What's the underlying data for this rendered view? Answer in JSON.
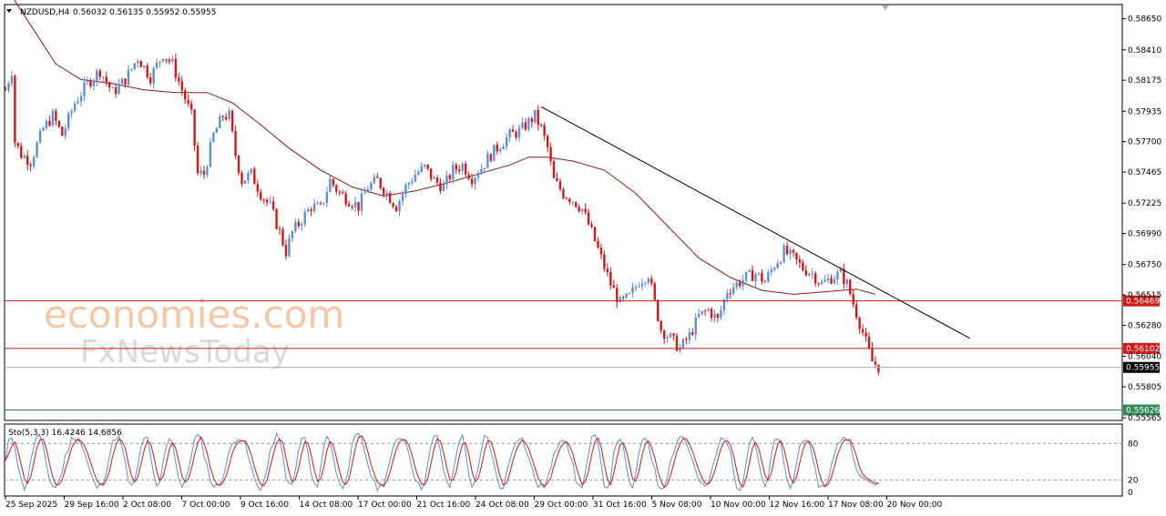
{
  "header": {
    "symbol": "NZDUSD,H4",
    "ohlc": "0.56032 0.56135 0.55952 0.55955"
  },
  "indicator_header": "Sto(5,3,3) 16.4246 14.6856",
  "watermark": {
    "line1": "economies.com",
    "line2": "FxNewsToday"
  },
  "colors": {
    "bull": "#5b8fd6",
    "bear": "#d41717",
    "ma": "#8b1a1a",
    "hline": "#d41717",
    "trend": "#000000",
    "sto_main": "#5b8fd6",
    "sto_signal": "#d41717",
    "green": "#2e8b57",
    "watermark_orange": "#f5c7a6",
    "watermark_grey": "#d9d9d9"
  },
  "chart_data": [
    {
      "type": "candlestick",
      "y_tick_labels": [
        "0.58650",
        "0.58410",
        "0.58175",
        "0.57935",
        "0.57700",
        "0.57465",
        "0.57225",
        "0.56990",
        "0.56750",
        "0.56515",
        "0.56280",
        "0.56040",
        "0.55805",
        "0.55565"
      ],
      "ylim": [
        0.55545,
        0.5876
      ],
      "x_tick_labels": [
        "25 Sep 2025",
        "29 Sep 16:00",
        "2 Oct 08:00",
        "7 Oct 00:00",
        "9 Oct 16:00",
        "14 Oct 08:00",
        "17 Oct 00:00",
        "21 Oct 16:00",
        "24 Oct 08:00",
        "29 Oct 00:00",
        "31 Oct 16:00",
        "5 Nov 08:00",
        "10 Nov 00:00",
        "12 Nov 16:00",
        "17 Nov 08:00",
        "20 Nov 00:00"
      ],
      "anchors": [
        [
          0,
          0.581
        ],
        [
          2,
          0.5825
        ],
        [
          3,
          0.577
        ],
        [
          5,
          0.576
        ],
        [
          8,
          0.5755
        ],
        [
          12,
          0.578
        ],
        [
          15,
          0.579
        ],
        [
          18,
          0.5775
        ],
        [
          22,
          0.58
        ],
        [
          26,
          0.5815
        ],
        [
          30,
          0.5825
        ],
        [
          34,
          0.5808
        ],
        [
          38,
          0.5818
        ],
        [
          42,
          0.5835
        ],
        [
          46,
          0.582
        ],
        [
          50,
          0.5838
        ],
        [
          53,
          0.583
        ],
        [
          56,
          0.581
        ],
        [
          59,
          0.579
        ],
        [
          61,
          0.5745
        ],
        [
          63,
          0.5745
        ],
        [
          66,
          0.5775
        ],
        [
          69,
          0.579
        ],
        [
          71,
          0.579
        ],
        [
          73,
          0.576
        ],
        [
          75,
          0.574
        ],
        [
          78,
          0.5745
        ],
        [
          81,
          0.573
        ],
        [
          84,
          0.572
        ],
        [
          87,
          0.57
        ],
        [
          89,
          0.5685
        ],
        [
          91,
          0.57
        ],
        [
          94,
          0.571
        ],
        [
          97,
          0.572
        ],
        [
          100,
          0.5718
        ],
        [
          103,
          0.574
        ],
        [
          106,
          0.573
        ],
        [
          109,
          0.5725
        ],
        [
          112,
          0.572
        ],
        [
          115,
          0.5735
        ],
        [
          118,
          0.574
        ],
        [
          121,
          0.573
        ],
        [
          124,
          0.572
        ],
        [
          127,
          0.5735
        ],
        [
          130,
          0.5745
        ],
        [
          133,
          0.575
        ],
        [
          136,
          0.574
        ],
        [
          139,
          0.5735
        ],
        [
          142,
          0.5748
        ],
        [
          145,
          0.5752
        ],
        [
          148,
          0.5742
        ],
        [
          151,
          0.575
        ],
        [
          154,
          0.576
        ],
        [
          157,
          0.5768
        ],
        [
          160,
          0.5775
        ],
        [
          163,
          0.5778
        ],
        [
          166,
          0.5785
        ],
        [
          168,
          0.579
        ],
        [
          170,
          0.578
        ],
        [
          172,
          0.5765
        ],
        [
          174,
          0.574
        ],
        [
          177,
          0.573
        ],
        [
          180,
          0.5725
        ],
        [
          183,
          0.5718
        ],
        [
          186,
          0.57
        ],
        [
          189,
          0.568
        ],
        [
          192,
          0.566
        ],
        [
          195,
          0.5645
        ],
        [
          198,
          0.565
        ],
        [
          201,
          0.5662
        ],
        [
          204,
          0.5668
        ],
        [
          206,
          0.5645
        ],
        [
          208,
          0.5625
        ],
        [
          211,
          0.5618
        ],
        [
          214,
          0.561
        ],
        [
          217,
          0.562
        ],
        [
          220,
          0.5635
        ],
        [
          223,
          0.564
        ],
        [
          226,
          0.5632
        ],
        [
          229,
          0.5655
        ],
        [
          232,
          0.566
        ],
        [
          235,
          0.5665
        ],
        [
          238,
          0.5668
        ],
        [
          241,
          0.5662
        ],
        [
          244,
          0.5675
        ],
        [
          247,
          0.5685
        ],
        [
          250,
          0.568
        ],
        [
          253,
          0.5672
        ],
        [
          256,
          0.5668
        ],
        [
          259,
          0.566
        ],
        [
          262,
          0.5665
        ],
        [
          265,
          0.5668
        ],
        [
          267,
          0.566
        ],
        [
          269,
          0.5645
        ],
        [
          271,
          0.563
        ],
        [
          273,
          0.5615
        ],
        [
          275,
          0.56
        ],
        [
          277,
          0.5596
        ]
      ],
      "moving_average": [
        [
          0,
          0.589
        ],
        [
          8,
          0.586
        ],
        [
          16,
          0.583
        ],
        [
          24,
          0.5818
        ],
        [
          34,
          0.5815
        ],
        [
          44,
          0.581
        ],
        [
          54,
          0.5808
        ],
        [
          64,
          0.5808
        ],
        [
          72,
          0.58
        ],
        [
          80,
          0.5785
        ],
        [
          90,
          0.5765
        ],
        [
          100,
          0.5748
        ],
        [
          110,
          0.5735
        ],
        [
          120,
          0.5728
        ],
        [
          130,
          0.5732
        ],
        [
          140,
          0.5738
        ],
        [
          150,
          0.5745
        ],
        [
          160,
          0.5752
        ],
        [
          166,
          0.5758
        ],
        [
          172,
          0.5758
        ],
        [
          180,
          0.5755
        ],
        [
          190,
          0.5748
        ],
        [
          200,
          0.573
        ],
        [
          210,
          0.5705
        ],
        [
          220,
          0.568
        ],
        [
          230,
          0.5665
        ],
        [
          240,
          0.5655
        ],
        [
          250,
          0.5652
        ],
        [
          260,
          0.5654
        ],
        [
          270,
          0.5656
        ],
        [
          276,
          0.5652
        ]
      ],
      "horizontal_lines": [
        {
          "label": "0.56469",
          "value": 0.56469,
          "color": "#d41717"
        },
        {
          "label": "0.56102",
          "value": 0.56102,
          "color": "#d41717"
        },
        {
          "label": "0.55955",
          "value": 0.55955,
          "color": "#000000"
        },
        {
          "label": "0.55626",
          "value": 0.55626,
          "color": "#2e8b57"
        }
      ],
      "trendline": {
        "from": [
          170,
          0.5797
        ],
        "to": [
          306,
          0.5618
        ]
      },
      "current_price": 0.55955
    },
    {
      "type": "line",
      "name": "Sto(5,3,3)",
      "ylim": [
        0,
        100
      ],
      "levels": [
        80,
        20
      ],
      "y_tick_labels": [
        "80",
        "20",
        "0"
      ],
      "main_last": 16.4246,
      "signal_last": 14.6856
    }
  ]
}
